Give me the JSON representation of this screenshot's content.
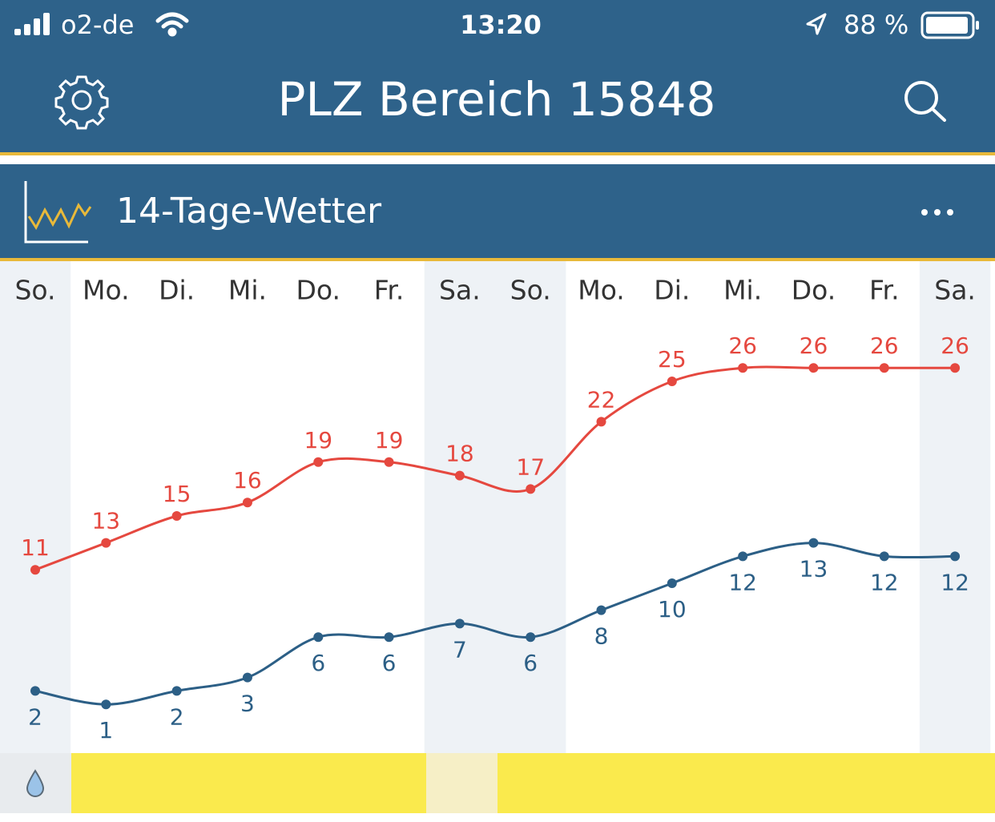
{
  "status_bar": {
    "carrier": "o2-de",
    "time": "13:20",
    "battery": "88 %"
  },
  "header": {
    "title": "PLZ Bereich 15848"
  },
  "widget": {
    "title": "14-Tage-Wetter"
  },
  "chart_data": {
    "type": "line",
    "categories": [
      "So.",
      "Mo.",
      "Di.",
      "Mi.",
      "Do.",
      "Fr.",
      "Sa.",
      "So.",
      "Mo.",
      "Di.",
      "Mi.",
      "Do.",
      "Fr.",
      "Sa."
    ],
    "series": [
      {
        "color": "#e5483f",
        "values": [
          11,
          13,
          15,
          16,
          19,
          19,
          18,
          17,
          22,
          25,
          26,
          26,
          26,
          26
        ]
      },
      {
        "color": "#2c5f86",
        "values": [
          2,
          1,
          2,
          3,
          6,
          6,
          7,
          6,
          8,
          10,
          12,
          13,
          12,
          12
        ]
      }
    ]
  }
}
